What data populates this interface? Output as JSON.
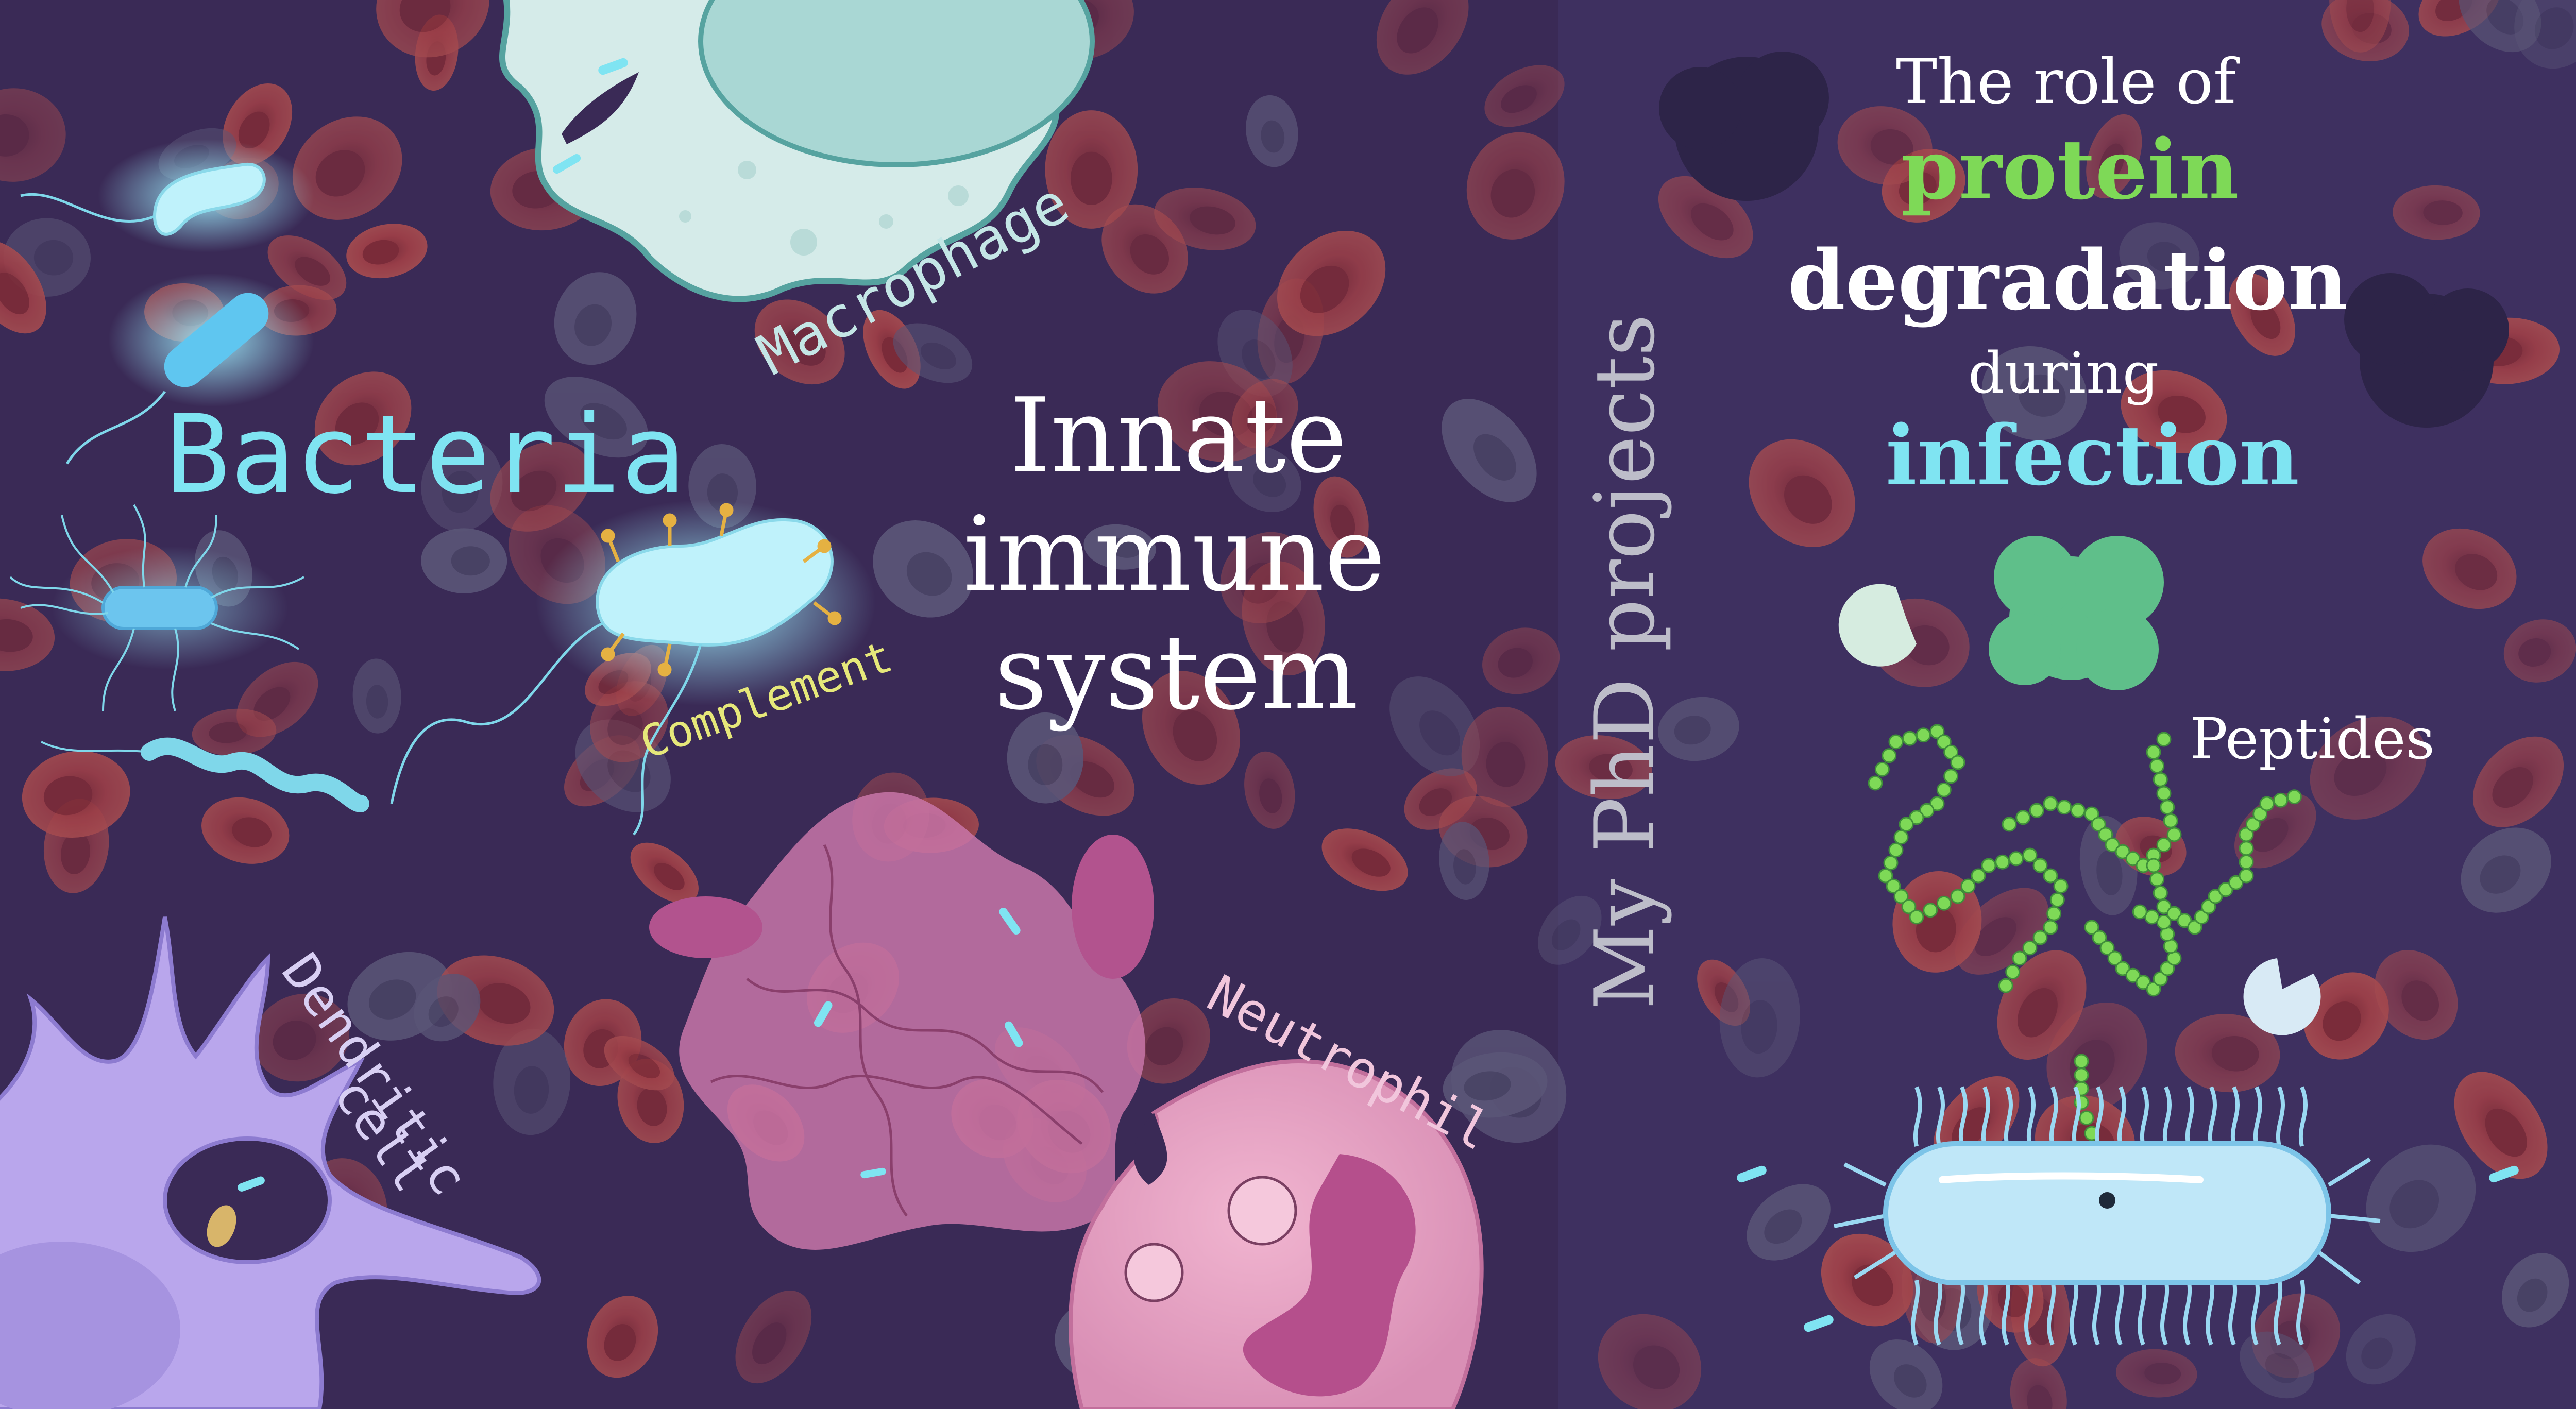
{
  "colors": {
    "background_left": "#3a2a56",
    "background_right": "#3e3060",
    "red_blood_cell": "#9a3f4a",
    "bacteria_cyan": "#7fe4f2",
    "complement_yellow": "#e6e87a",
    "peptide_green": "#7ed957",
    "white_text": "#ffffff",
    "grey_text": "#bdbdc9"
  },
  "left_panel": {
    "title_line1": "Innate",
    "title_line2": "immune",
    "title_line3": "system",
    "labels": {
      "bacteria": "Bacteria",
      "macrophage": "Macrophage",
      "complement": "Complement",
      "dendritic": "Dendritic",
      "cell": "cell",
      "neutrophil": "Neutrophil"
    }
  },
  "right_panel": {
    "vertical_label": "My PhD projects",
    "heading_line1": "The role of",
    "heading_line2": "protein",
    "heading_line3": "degradation",
    "heading_line4": "during",
    "heading_line5": "infection",
    "peptides_label": "Peptides"
  }
}
